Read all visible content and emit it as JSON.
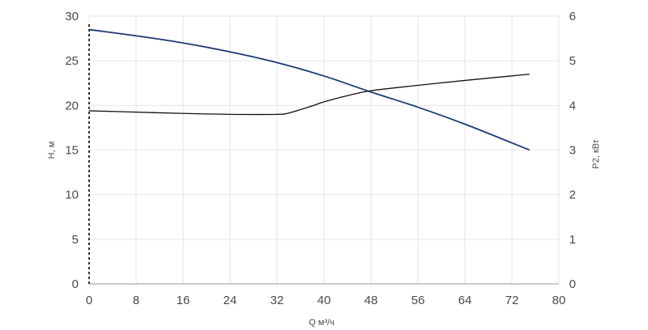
{
  "chart_data": {
    "type": "line",
    "title": "",
    "xlabel": "Q м³/ч",
    "ylabel_left": "H, м",
    "ylabel_right": "P2, кВт",
    "xlim": [
      0,
      80
    ],
    "ylim_left": [
      0,
      30
    ],
    "ylim_right": [
      0,
      6
    ],
    "x_ticks": [
      "0",
      "8",
      "16",
      "24",
      "32",
      "40",
      "48",
      "56",
      "64",
      "72",
      "80"
    ],
    "y_left_ticks": [
      "0",
      "5",
      "10",
      "15",
      "20",
      "25",
      "30"
    ],
    "y_right_ticks": [
      "0",
      "1",
      "2",
      "3",
      "4",
      "5",
      "6"
    ],
    "grid": false,
    "series": [
      {
        "axis": "left",
        "color": "#1f3a73",
        "x": [
          0,
          8,
          16,
          24,
          32,
          40,
          48,
          56,
          64,
          75
        ],
        "values": [
          28.5,
          27.8,
          27.0,
          26.0,
          24.8,
          23.3,
          21.5,
          19.8,
          17.9,
          15.0
        ]
      },
      {
        "axis": "right",
        "color": "#111111",
        "x": [
          0,
          8,
          16,
          24,
          32,
          34,
          38,
          40,
          44,
          48,
          56,
          64,
          75
        ],
        "values": [
          3.88,
          3.85,
          3.82,
          3.8,
          3.8,
          3.83,
          3.99,
          4.08,
          4.22,
          4.33,
          4.45,
          4.56,
          4.7
        ]
      }
    ]
  }
}
